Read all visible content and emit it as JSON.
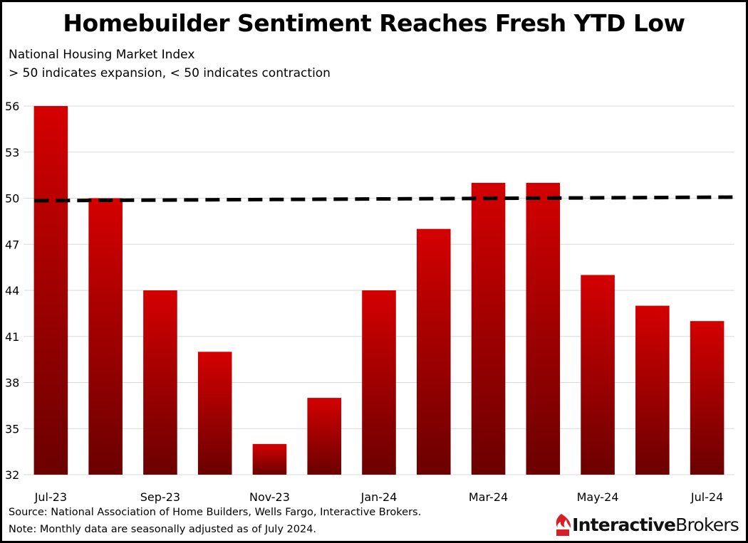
{
  "title": "Homebuilder Sentiment Reaches Fresh YTD Low",
  "subtitle_lines": [
    "National Housing Market Index",
    "> 50 indicates expansion, < 50 indicates contraction"
  ],
  "footnotes": [
    "Source: National Association of Home Builders, Wells Fargo, Interactive Brokers.",
    "Note: Monthly data are seasonally adjusted as of July 2024."
  ],
  "brand": {
    "name_bold": "Interactive",
    "name_regular": "Brokers",
    "color": "#d81f26"
  },
  "chart_data": {
    "type": "bar",
    "categories": [
      "Jul-23",
      "Aug-23",
      "Sep-23",
      "Oct-23",
      "Nov-23",
      "Dec-23",
      "Jan-24",
      "Feb-24",
      "Mar-24",
      "Apr-24",
      "May-24",
      "Jun-24",
      "Jul-24"
    ],
    "shown_tick_labels": [
      "Jul-23",
      "",
      "Sep-23",
      "",
      "Nov-23",
      "",
      "Jan-24",
      "",
      "Mar-24",
      "",
      "May-24",
      "",
      "Jul-24"
    ],
    "values": [
      56,
      50,
      44,
      40,
      34,
      37,
      44,
      48,
      51,
      51,
      45,
      43,
      42
    ],
    "y_ticks": [
      32,
      35,
      38,
      41,
      44,
      47,
      50,
      53,
      56
    ],
    "ylim": [
      32,
      56
    ],
    "reference_line": {
      "value": 50,
      "style": "dashed",
      "color": "#000000"
    },
    "bar_color_top": "#d40000",
    "bar_color_bottom": "#6b0000",
    "grid": true,
    "xlabel": "",
    "ylabel": ""
  }
}
